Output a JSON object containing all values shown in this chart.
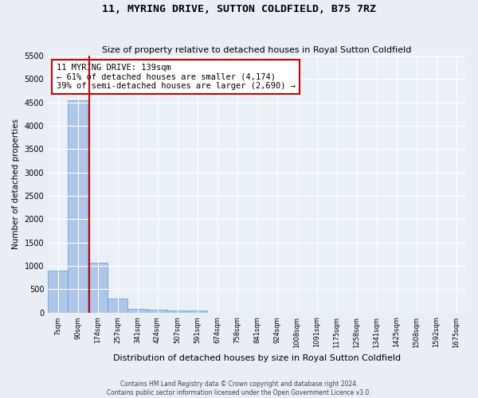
{
  "title": "11, MYRING DRIVE, SUTTON COLDFIELD, B75 7RZ",
  "subtitle": "Size of property relative to detached houses in Royal Sutton Coldfield",
  "xlabel": "Distribution of detached houses by size in Royal Sutton Coldfield",
  "ylabel": "Number of detached properties",
  "bin_labels": [
    "7sqm",
    "90sqm",
    "174sqm",
    "257sqm",
    "341sqm",
    "424sqm",
    "507sqm",
    "591sqm",
    "674sqm",
    "758sqm",
    "841sqm",
    "924sqm",
    "1008sqm",
    "1091sqm",
    "1175sqm",
    "1258sqm",
    "1341sqm",
    "1425sqm",
    "1508sqm",
    "1592sqm",
    "1675sqm"
  ],
  "bar_values": [
    900,
    4550,
    1075,
    300,
    80,
    60,
    50,
    50,
    0,
    0,
    0,
    0,
    0,
    0,
    0,
    0,
    0,
    0,
    0,
    0,
    0
  ],
  "bar_color": "#aec6e8",
  "bar_edge_color": "#5b9bd5",
  "vline_color": "#cc0000",
  "annotation_text": "11 MYRING DRIVE: 139sqm\n← 61% of detached houses are smaller (4,174)\n39% of semi-detached houses are larger (2,690) →",
  "annotation_box_color": "#cc0000",
  "ylim": [
    0,
    5500
  ],
  "yticks": [
    0,
    500,
    1000,
    1500,
    2000,
    2500,
    3000,
    3500,
    4000,
    4500,
    5000,
    5500
  ],
  "bg_color": "#e8eef4",
  "plot_bg_color": "#eaf0f8",
  "footer_line1": "Contains HM Land Registry data © Crown copyright and database right 2024.",
  "footer_line2": "Contains public sector information licensed under the Open Government Licence v3.0."
}
